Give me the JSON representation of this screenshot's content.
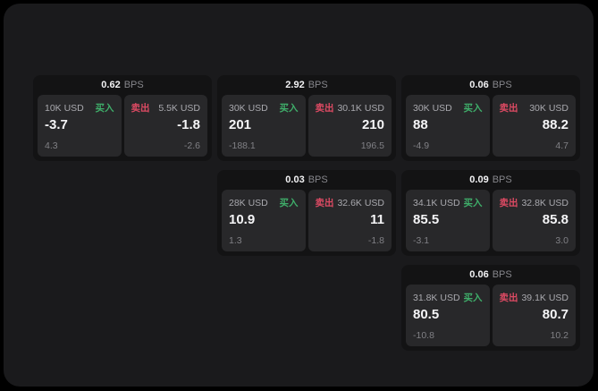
{
  "labels": {
    "unit": "BPS",
    "buy": "买入",
    "sell": "卖出"
  },
  "colors": {
    "buy": "#3fae6a",
    "sell": "#dd4a63",
    "surface": "#1a1a1c",
    "card": "#131314",
    "panel": "#28282a"
  },
  "cards": [
    {
      "bps": "0.62",
      "buy": {
        "amount": "10K USD",
        "value": "-3.7",
        "sub": "4.3"
      },
      "sell": {
        "amount": "5.5K USD",
        "value": "-1.8",
        "sub": "-2.6"
      }
    },
    {
      "bps": "2.92",
      "buy": {
        "amount": "30K USD",
        "value": "201",
        "sub": "-188.1"
      },
      "sell": {
        "amount": "30.1K USD",
        "value": "210",
        "sub": "196.5"
      }
    },
    {
      "bps": "0.06",
      "buy": {
        "amount": "30K USD",
        "value": "88",
        "sub": "-4.9"
      },
      "sell": {
        "amount": "30K USD",
        "value": "88.2",
        "sub": "4.7"
      }
    },
    {
      "bps": "0.03",
      "buy": {
        "amount": "28K USD",
        "value": "10.9",
        "sub": "1.3"
      },
      "sell": {
        "amount": "32.6K USD",
        "value": "11",
        "sub": "-1.8"
      }
    },
    {
      "bps": "0.09",
      "buy": {
        "amount": "34.1K USD",
        "value": "85.5",
        "sub": "-3.1"
      },
      "sell": {
        "amount": "32.8K USD",
        "value": "85.8",
        "sub": "3.0"
      }
    },
    {
      "bps": "0.06",
      "buy": {
        "amount": "31.8K USD",
        "value": "80.5",
        "sub": "-10.8"
      },
      "sell": {
        "amount": "39.1K USD",
        "value": "80.7",
        "sub": "10.2"
      }
    }
  ]
}
